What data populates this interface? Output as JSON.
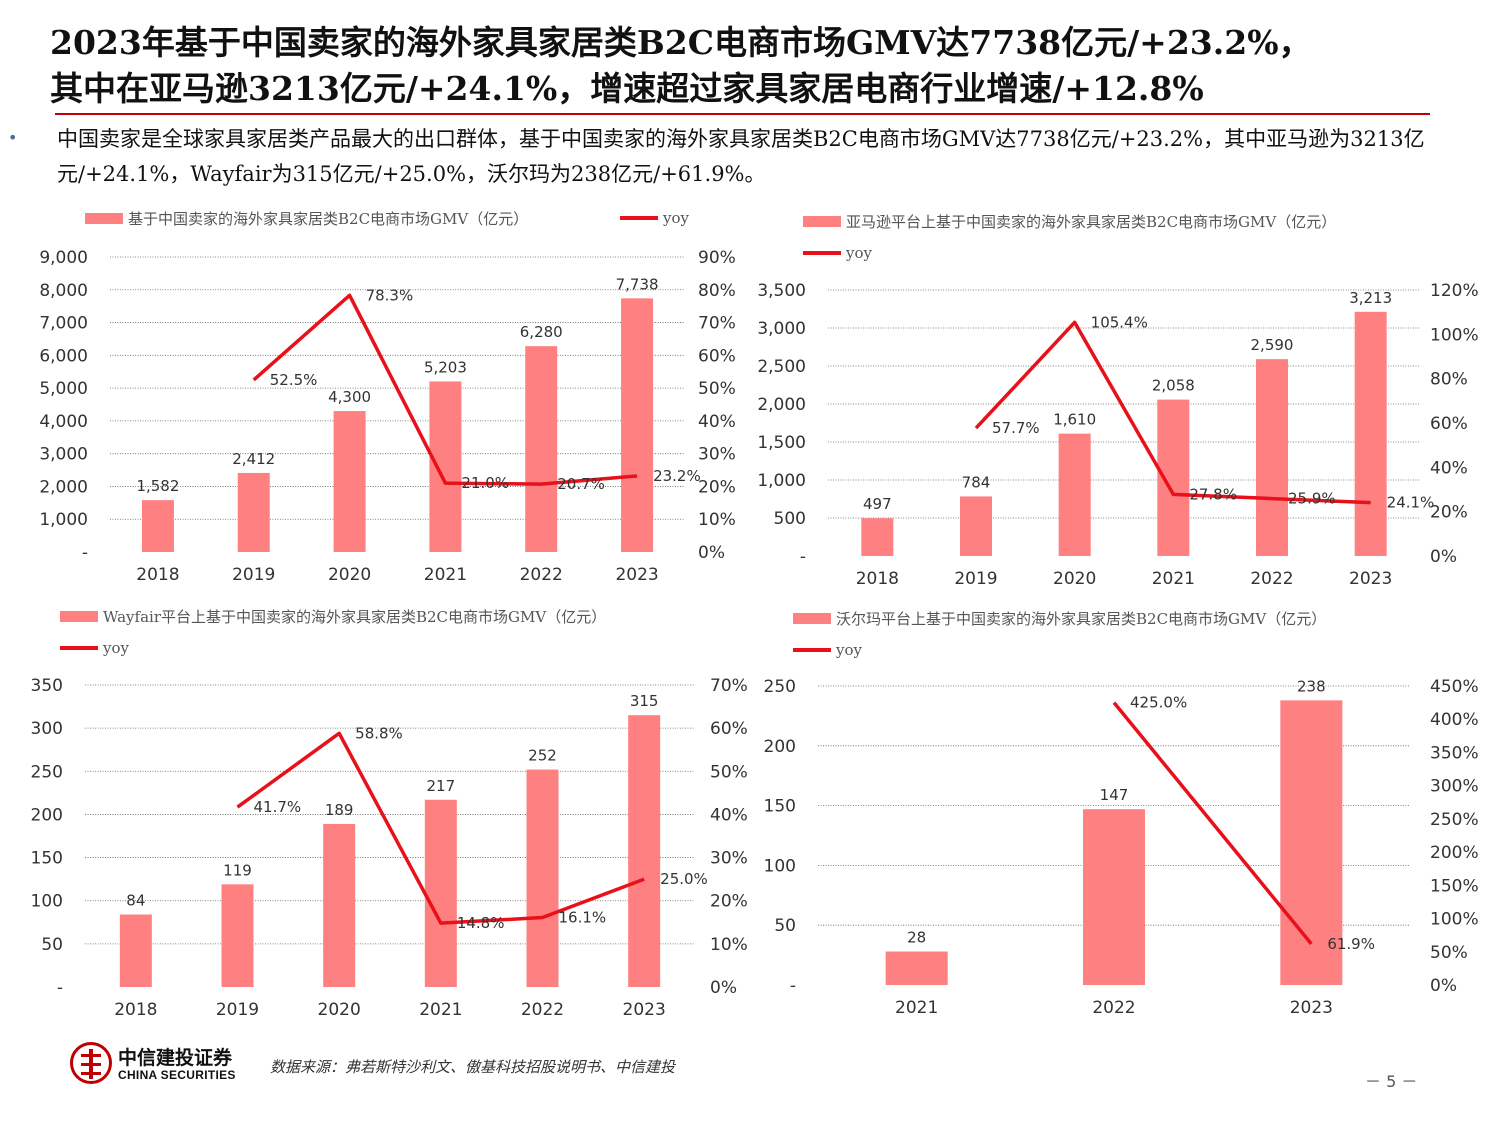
{
  "header": {
    "title_line1": "2023年基于中国卖家的海外家具家居类B2C电商市场GMV达7738亿元/+23.2%，",
    "title_line2": "其中在亚马逊3213亿元/+24.1%，增速超过家具家居电商行业增速/+12.8%",
    "bullet_marker": "•",
    "bullet_text": "中国卖家是全球家具家居类产品最大的出口群体，基于中国卖家的海外家具家居类B2C电商市场GMV达7738亿元/+23.2%，其中亚马逊为3213亿元/+24.1%，Wayfair为315亿元/+25.0%，沃尔玛为238亿元/+61.9%。"
  },
  "colors": {
    "bar": "#ff8080",
    "line": "#e8101a",
    "accent": "#c00000"
  },
  "chart_data": [
    {
      "type": "bar+line",
      "legend_bar": "基于中国卖家的海外家具家居类B2C电商市场GMV（亿元）",
      "legend_line": "yoy",
      "legend_layout": "one-row",
      "categories": [
        "2018",
        "2019",
        "2020",
        "2021",
        "2022",
        "2023"
      ],
      "bar_labels": [
        "1,582",
        "2,412",
        "4,300",
        "5,203",
        "6,280",
        "7,738"
      ],
      "bars": [
        1582,
        2412,
        4300,
        5203,
        6280,
        7738
      ],
      "line": [
        null,
        52.5,
        78.3,
        21.0,
        20.7,
        23.2
      ],
      "line_labels": [
        "",
        "52.5%",
        "78.3%",
        "21.0%",
        "20.7%",
        "23.2%"
      ],
      "ylim": [
        0,
        9000
      ],
      "y_ticks": [
        "-",
        "1,000",
        "2,000",
        "3,000",
        "4,000",
        "5,000",
        "6,000",
        "7,000",
        "8,000",
        "9,000"
      ],
      "y2lim": [
        0,
        90
      ],
      "y2_ticks": [
        "0%",
        "10%",
        "20%",
        "30%",
        "40%",
        "50%",
        "60%",
        "70%",
        "80%",
        "90%"
      ]
    },
    {
      "type": "bar+line",
      "legend_bar": "亚马逊平台上基于中国卖家的海外家具家居类B2C电商市场GMV（亿元）",
      "legend_line": "yoy",
      "legend_layout": "two-row",
      "categories": [
        "2018",
        "2019",
        "2020",
        "2021",
        "2022",
        "2023"
      ],
      "bar_labels": [
        "497",
        "784",
        "1,610",
        "2,058",
        "2,590",
        "3,213"
      ],
      "bars": [
        497,
        784,
        1610,
        2058,
        2590,
        3213
      ],
      "line": [
        null,
        57.7,
        105.4,
        27.8,
        25.9,
        24.1
      ],
      "line_labels": [
        "",
        "57.7%",
        "105.4%",
        "27.8%",
        "25.9%",
        "24.1%"
      ],
      "ylim": [
        0,
        3500
      ],
      "y_ticks": [
        "-",
        "500",
        "1,000",
        "1,500",
        "2,000",
        "2,500",
        "3,000",
        "3,500"
      ],
      "y2lim": [
        0,
        120
      ],
      "y2_ticks": [
        "0%",
        "20%",
        "40%",
        "60%",
        "80%",
        "100%",
        "120%"
      ]
    },
    {
      "type": "bar+line",
      "legend_bar": "Wayfair平台上基于中国卖家的海外家具家居类B2C电商市场GMV（亿元）",
      "legend_line": "yoy",
      "legend_layout": "two-row",
      "categories": [
        "2018",
        "2019",
        "2020",
        "2021",
        "2022",
        "2023"
      ],
      "bar_labels": [
        "84",
        "119",
        "189",
        "217",
        "252",
        "315"
      ],
      "bars": [
        84,
        119,
        189,
        217,
        252,
        315
      ],
      "line": [
        null,
        41.7,
        58.8,
        14.8,
        16.1,
        25.0
      ],
      "line_labels": [
        "",
        "41.7%",
        "58.8%",
        "14.8%",
        "16.1%",
        "25.0%"
      ],
      "ylim": [
        0,
        350
      ],
      "y_ticks": [
        "-",
        "50",
        "100",
        "150",
        "200",
        "250",
        "300",
        "350"
      ],
      "y2lim": [
        0,
        70
      ],
      "y2_ticks": [
        "0%",
        "10%",
        "20%",
        "30%",
        "40%",
        "50%",
        "60%",
        "70%"
      ]
    },
    {
      "type": "bar+line",
      "legend_bar": "沃尔玛平台上基于中国卖家的海外家具家居类B2C电商市场GMV（亿元）",
      "legend_line": "yoy",
      "legend_layout": "two-row",
      "categories": [
        "2021",
        "2022",
        "2023"
      ],
      "bar_labels": [
        "28",
        "147",
        "238"
      ],
      "bars": [
        28,
        147,
        238
      ],
      "line": [
        null,
        425.0,
        61.9
      ],
      "line_labels": [
        "",
        "425.0%",
        "61.9%"
      ],
      "ylim": [
        0,
        250
      ],
      "y_ticks": [
        "-",
        "50",
        "100",
        "150",
        "200",
        "250"
      ],
      "y2lim": [
        0,
        450
      ],
      "y2_ticks": [
        "0%",
        "50%",
        "100%",
        "150%",
        "200%",
        "250%",
        "300%",
        "350%",
        "400%",
        "450%"
      ]
    }
  ],
  "footer": {
    "logo_cn": "中信建投证券",
    "logo_en": "CHINA SECURITIES",
    "source": "数据来源：弗若斯特沙利文、傲基科技招股说明书、中信建投",
    "page_number": "－ 5 －"
  }
}
